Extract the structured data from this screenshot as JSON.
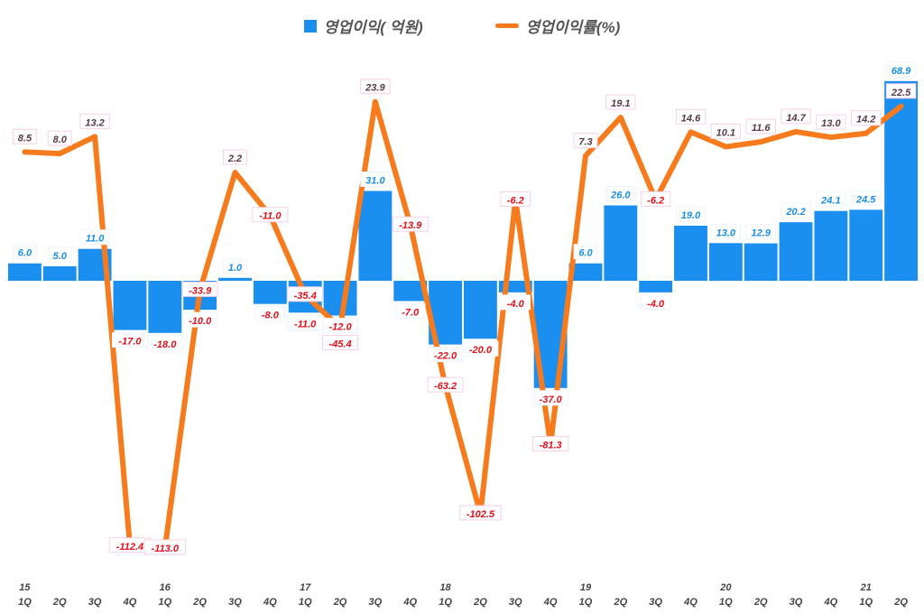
{
  "chart_data": {
    "type": "bar+line",
    "categories": [
      "1Q",
      "2Q",
      "3Q",
      "4Q",
      "1Q",
      "2Q",
      "3Q",
      "4Q",
      "1Q",
      "2Q",
      "3Q",
      "4Q",
      "1Q",
      "2Q",
      "3Q",
      "4Q",
      "1Q",
      "2Q",
      "3Q",
      "4Q",
      "1Q",
      "2Q",
      "3Q",
      "4Q",
      "1Q",
      "2Q"
    ],
    "years": [
      "15",
      "",
      "",
      "",
      "16",
      "",
      "",
      "",
      "17",
      "",
      "",
      "",
      "18",
      "",
      "",
      "",
      "19",
      "",
      "",
      "",
      "20",
      "",
      "",
      "",
      "21",
      ""
    ],
    "series": [
      {
        "name": "영업이익( 억원)",
        "type": "bar",
        "color": "#1a8ff0",
        "values": [
          6.0,
          5.0,
          11.0,
          -17.0,
          -18.0,
          -10.0,
          1.0,
          -8.0,
          -11.0,
          -12.0,
          31.0,
          -7.0,
          -22.0,
          -20.0,
          -4.0,
          -37.0,
          6.0,
          26.0,
          -4.0,
          19.0,
          13.0,
          12.9,
          20.2,
          24.1,
          24.5,
          68.9
        ]
      },
      {
        "name": "영업이익률(%)",
        "type": "line",
        "axis": "secondary",
        "color": "#f77b1c",
        "values": [
          8.5,
          8.0,
          13.2,
          -112.4,
          -113.0,
          -33.9,
          2.2,
          -11.0,
          -35.4,
          -45.4,
          23.9,
          -13.9,
          -63.2,
          -102.5,
          -6.2,
          -81.3,
          7.3,
          19.1,
          -6.2,
          14.6,
          10.1,
          11.6,
          14.7,
          13.0,
          14.2,
          22.5
        ]
      }
    ],
    "legend": "top",
    "grid": false
  }
}
